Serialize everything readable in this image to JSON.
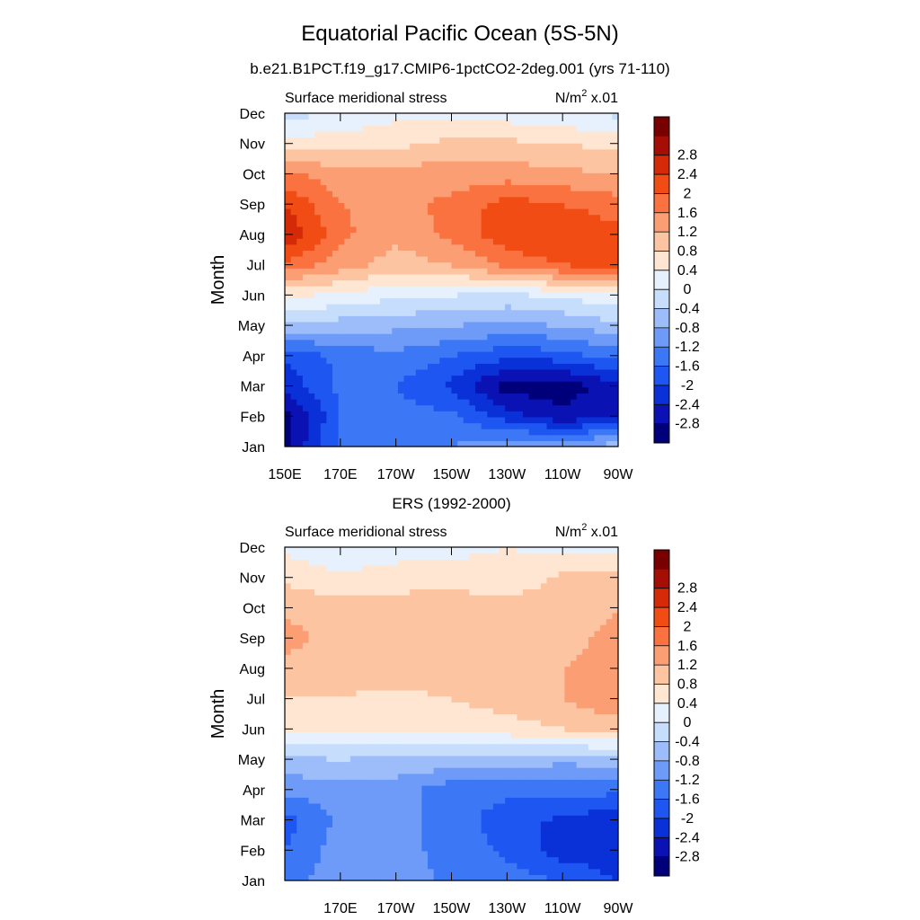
{
  "header": {
    "title": "Equatorial Pacific Ocean (5S-5N)",
    "subtitle": "b.e21.B1PCT.f19_g17.CMIP6-1pctCO2-2deg.001 (yrs 71-110)"
  },
  "chart_data": [
    {
      "type": "heatmap",
      "plot_title": "",
      "left_label": "Surface meridional stress",
      "units_base": "N/m",
      "units_exp": "2",
      "units_suffix": " x.01",
      "ylabel": "Month",
      "months": [
        "Jan",
        "Feb",
        "Mar",
        "Apr",
        "May",
        "Jun",
        "Jul",
        "Aug",
        "Sep",
        "Oct",
        "Nov",
        "Dec"
      ],
      "x_ticks": [
        "150E",
        "170E",
        "170W",
        "150W",
        "130W",
        "110W",
        "90W"
      ],
      "x_values_deg_east": [
        150,
        170,
        190,
        210,
        230,
        250,
        270
      ],
      "xlim": [
        150,
        270
      ],
      "ylim": [
        "Jan",
        "Dec"
      ],
      "colorbar_levels": [
        "-2.8",
        "-2.4",
        "-2",
        "-1.6",
        "-1.2",
        "-0.8",
        "-0.4",
        "0",
        "0.4",
        "0.8",
        "1.2",
        "1.6",
        "2",
        "2.4",
        "2.8"
      ],
      "colorbar_colors": [
        "#00007a",
        "#0a12b4",
        "#0a30d8",
        "#1e56f2",
        "#3c78f6",
        "#6e9af8",
        "#9cbcfa",
        "#c6ddfc",
        "#e7f1fe",
        "#fee6d2",
        "#fdc4a2",
        "#fc9e74",
        "#fa7240",
        "#f04c14",
        "#d42a08",
        "#a40e04",
        "#780000"
      ],
      "values": [
        [
          -2.9,
          -1.5,
          -1.3,
          -1.2,
          -0.9,
          -0.7,
          -0.6
        ],
        [
          -3.0,
          -1.6,
          -1.4,
          -1.5,
          -2.2,
          -2.7,
          -2.4
        ],
        [
          -2.3,
          -1.5,
          -1.6,
          -2.1,
          -3.0,
          -3.0,
          -2.6
        ],
        [
          -1.9,
          -1.5,
          -1.3,
          -1.6,
          -1.9,
          -1.8,
          -1.4
        ],
        [
          -0.5,
          -0.6,
          -0.7,
          -0.8,
          -0.9,
          -0.8,
          -0.5
        ],
        [
          0.5,
          0.3,
          0.1,
          0.0,
          -0.1,
          0.1,
          0.3
        ],
        [
          1.9,
          1.4,
          1.0,
          1.2,
          1.7,
          2.0,
          2.1
        ],
        [
          2.8,
          1.7,
          1.3,
          1.7,
          2.3,
          2.4,
          2.1
        ],
        [
          2.4,
          1.6,
          1.5,
          1.7,
          2.2,
          2.0,
          1.8
        ],
        [
          1.7,
          1.4,
          1.4,
          1.4,
          1.4,
          1.3,
          1.2
        ],
        [
          0.6,
          0.6,
          0.7,
          0.9,
          0.9,
          0.8,
          0.7
        ],
        [
          -0.2,
          0.1,
          0.3,
          0.3,
          0.2,
          0.1,
          -0.1
        ]
      ]
    },
    {
      "type": "heatmap",
      "plot_title": "ERS (1992-2000)",
      "left_label": "Surface meridional stress",
      "units_base": "N/m",
      "units_exp": "2",
      "units_suffix": " x.01",
      "ylabel": "Month",
      "months": [
        "Jan",
        "Feb",
        "Mar",
        "Apr",
        "May",
        "Jun",
        "Jul",
        "Aug",
        "Sep",
        "Oct",
        "Nov",
        "Dec"
      ],
      "x_ticks": [
        "",
        "170E",
        "170W",
        "150W",
        "130W",
        "110W",
        "90W"
      ],
      "x_values_deg_east": [
        150,
        170,
        190,
        210,
        230,
        250,
        270
      ],
      "xlim": [
        150,
        270
      ],
      "ylim": [
        "Jan",
        "Dec"
      ],
      "colorbar_levels": [
        "-2.8",
        "-2.4",
        "-2",
        "-1.6",
        "-1.2",
        "-0.8",
        "-0.4",
        "0",
        "0.4",
        "0.8",
        "1.2",
        "1.6",
        "2",
        "2.4",
        "2.8"
      ],
      "colorbar_colors": [
        "#00007a",
        "#0a12b4",
        "#0a30d8",
        "#1e56f2",
        "#3c78f6",
        "#6e9af8",
        "#9cbcfa",
        "#c6ddfc",
        "#e7f1fe",
        "#fee6d2",
        "#fdc4a2",
        "#fc9e74",
        "#fa7240",
        "#f04c14",
        "#d42a08",
        "#a40e04",
        "#780000"
      ],
      "values": [
        [
          -1.4,
          -0.9,
          -1.0,
          -1.3,
          -1.4,
          -1.6,
          -2.0
        ],
        [
          -1.6,
          -1.0,
          -1.1,
          -1.3,
          -1.7,
          -2.2,
          -2.3
        ],
        [
          -1.8,
          -1.1,
          -1.0,
          -1.4,
          -1.8,
          -2.1,
          -2.3
        ],
        [
          -1.1,
          -1.0,
          -1.0,
          -1.5,
          -1.5,
          -1.4,
          -1.5
        ],
        [
          -0.5,
          -0.4,
          -0.5,
          -0.5,
          -0.5,
          -0.7,
          -0.6
        ],
        [
          0.4,
          0.4,
          0.4,
          0.5,
          0.6,
          0.8,
          1.0
        ],
        [
          0.8,
          0.8,
          0.7,
          0.8,
          1.0,
          1.2,
          1.5
        ],
        [
          1.0,
          0.9,
          1.0,
          1.0,
          1.0,
          1.2,
          1.3
        ],
        [
          1.4,
          1.0,
          1.2,
          1.1,
          1.0,
          1.1,
          1.3
        ],
        [
          1.1,
          1.0,
          1.0,
          1.1,
          1.0,
          1.0,
          1.2
        ],
        [
          0.7,
          0.5,
          0.6,
          0.6,
          0.5,
          0.9,
          0.9
        ],
        [
          0.3,
          0.0,
          0.2,
          0.3,
          0.4,
          0.3,
          0.2
        ]
      ]
    }
  ]
}
